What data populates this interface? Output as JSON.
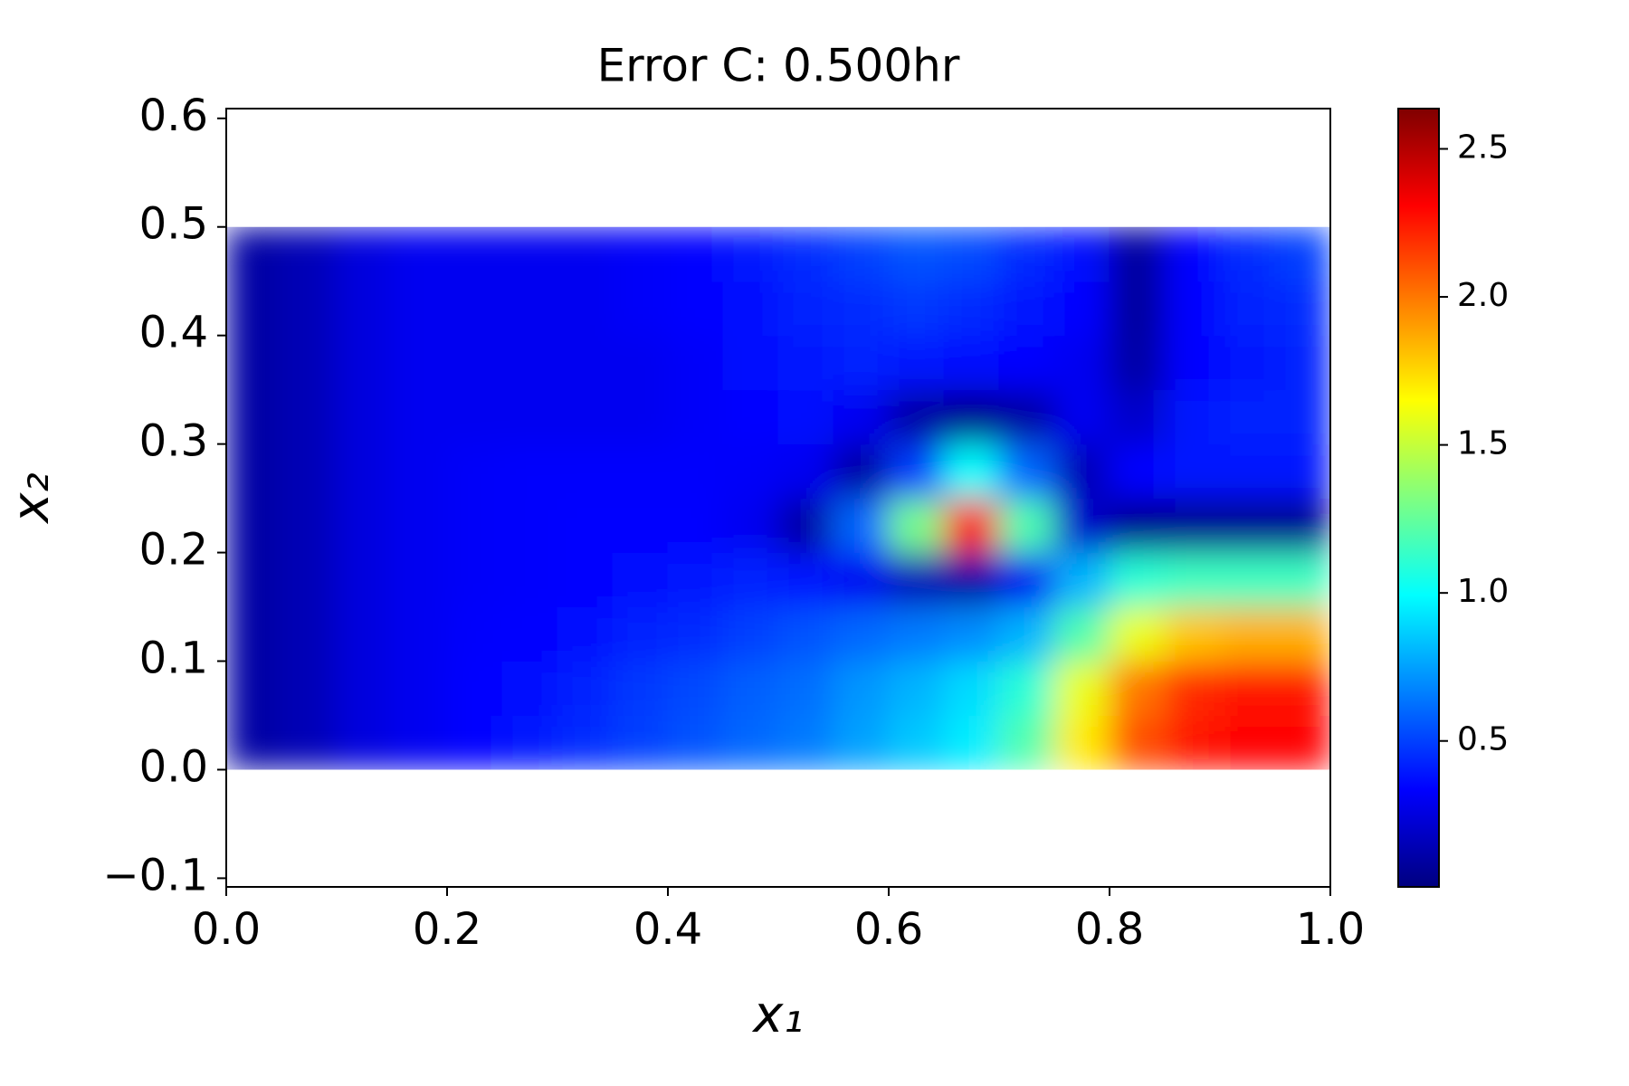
{
  "chart_data": {
    "type": "heatmap",
    "title": "Error C: 0.500hr",
    "xlabel": "x₁",
    "ylabel": "x₂",
    "x": [
      0.025,
      0.075,
      0.125,
      0.175,
      0.225,
      0.275,
      0.325,
      0.375,
      0.425,
      0.475,
      0.525,
      0.575,
      0.625,
      0.675,
      0.725,
      0.775,
      0.825,
      0.875,
      0.925,
      0.975
    ],
    "y": [
      0.025,
      0.075,
      0.125,
      0.175,
      0.225,
      0.275,
      0.325,
      0.375,
      0.425,
      0.475
    ],
    "z": [
      [
        0.1,
        0.15,
        0.25,
        0.3,
        0.35,
        0.4,
        0.45,
        0.5,
        0.55,
        0.6,
        0.65,
        0.75,
        0.85,
        0.95,
        1.2,
        1.7,
        2.1,
        2.25,
        2.3,
        2.3
      ],
      [
        0.1,
        0.15,
        0.25,
        0.3,
        0.35,
        0.38,
        0.42,
        0.48,
        0.52,
        0.58,
        0.62,
        0.72,
        0.8,
        0.9,
        1.1,
        1.6,
        2.0,
        2.2,
        2.25,
        2.25
      ],
      [
        0.1,
        0.15,
        0.25,
        0.3,
        0.33,
        0.35,
        0.38,
        0.42,
        0.45,
        0.5,
        0.55,
        0.6,
        0.65,
        0.7,
        0.8,
        1.2,
        1.6,
        1.8,
        1.85,
        1.85
      ],
      [
        0.1,
        0.15,
        0.25,
        0.3,
        0.32,
        0.33,
        0.35,
        0.37,
        0.4,
        0.42,
        0.4,
        0.3,
        0.15,
        0.1,
        0.3,
        0.8,
        1.1,
        1.15,
        1.15,
        1.15
      ],
      [
        0.1,
        0.15,
        0.25,
        0.3,
        0.32,
        0.33,
        0.34,
        0.35,
        0.35,
        0.3,
        0.1,
        0.6,
        1.3,
        2.3,
        1.2,
        0.2,
        0.05,
        0.05,
        0.05,
        0.05
      ],
      [
        0.1,
        0.15,
        0.25,
        0.3,
        0.32,
        0.33,
        0.33,
        0.33,
        0.33,
        0.32,
        0.3,
        0.1,
        0.5,
        1.0,
        0.6,
        0.15,
        0.35,
        0.4,
        0.4,
        0.4
      ],
      [
        0.1,
        0.15,
        0.25,
        0.3,
        0.3,
        0.3,
        0.3,
        0.3,
        0.32,
        0.35,
        0.38,
        0.3,
        0.1,
        0.05,
        0.1,
        0.3,
        0.2,
        0.4,
        0.42,
        0.42
      ],
      [
        0.1,
        0.15,
        0.25,
        0.3,
        0.3,
        0.3,
        0.3,
        0.3,
        0.32,
        0.36,
        0.4,
        0.42,
        0.4,
        0.38,
        0.35,
        0.3,
        0.1,
        0.35,
        0.4,
        0.42
      ],
      [
        0.1,
        0.15,
        0.25,
        0.3,
        0.3,
        0.3,
        0.3,
        0.32,
        0.35,
        0.38,
        0.42,
        0.45,
        0.48,
        0.45,
        0.4,
        0.35,
        0.08,
        0.35,
        0.42,
        0.45
      ],
      [
        0.1,
        0.15,
        0.25,
        0.3,
        0.3,
        0.3,
        0.3,
        0.32,
        0.35,
        0.4,
        0.45,
        0.5,
        0.55,
        0.52,
        0.45,
        0.38,
        0.08,
        0.35,
        0.45,
        0.5
      ]
    ],
    "xlim": [
      0,
      1
    ],
    "ylim": [
      -0.108,
      0.609
    ],
    "xticks": [
      {
        "value": 0,
        "label": "0.0"
      },
      0.2,
      0.4,
      0.6,
      0.8,
      {
        "value": 1,
        "label": "1.0"
      }
    ],
    "yticks": [
      {
        "value": -0.1,
        "label": "−0.1"
      },
      {
        "value": 0,
        "label": "0.0"
      },
      0.1,
      0.2,
      0.3,
      0.4,
      0.5,
      0.6
    ],
    "colormap": "jet",
    "clim": [
      0.007,
      2.636
    ],
    "cticks": [
      0.5,
      {
        "value": 1,
        "label": "1.0"
      },
      1.5,
      {
        "value": 2,
        "label": "2.0"
      },
      2.5
    ]
  }
}
